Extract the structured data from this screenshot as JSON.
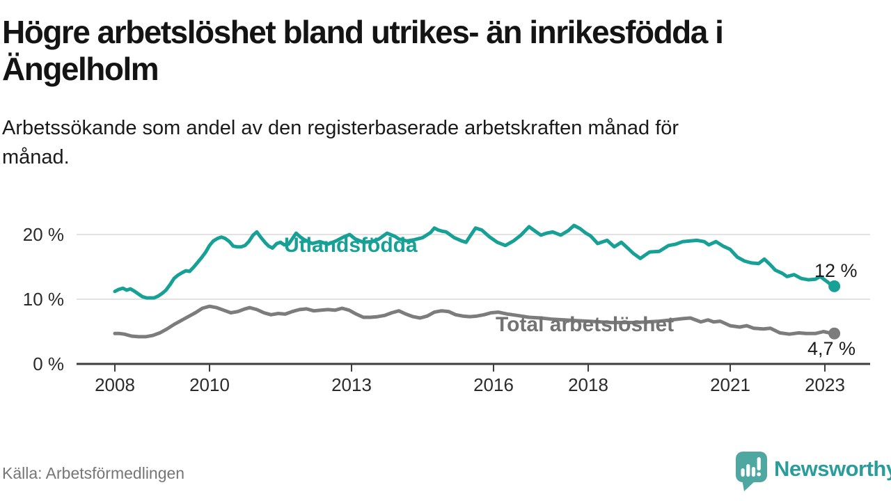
{
  "header": {
    "title": "Högre arbetslöshet bland utrikes- än inrikesfödda i Ängelholm",
    "subtitle": "Arbetssökande som andel av den registerbaserade arbetskraften månad för månad."
  },
  "chart_data": {
    "type": "line",
    "unit": "% av registerbaserad arbetskraft",
    "grid": "horizontal",
    "x_axis": {
      "range": [
        2007.9,
        2023.7
      ],
      "ticks": [
        {
          "value": 2008,
          "label": "2008"
        },
        {
          "value": 2010,
          "label": "2010"
        },
        {
          "value": 2013,
          "label": "2013"
        },
        {
          "value": 2016,
          "label": "2016"
        },
        {
          "value": 2018,
          "label": "2018"
        },
        {
          "value": 2021,
          "label": "2021"
        },
        {
          "value": 2023,
          "label": "2023"
        }
      ]
    },
    "y_axis": {
      "range": [
        0,
        24
      ],
      "ticks": [
        {
          "value": 0,
          "label": "0 %"
        },
        {
          "value": 10,
          "label": "10 %"
        },
        {
          "value": 20,
          "label": "20 %"
        }
      ]
    },
    "series": [
      {
        "name": "Utlandsfödda",
        "color": "#17a096",
        "label_color": "#17a096",
        "end_label": "12 %",
        "end_value": 12,
        "points": [
          [
            2008.0,
            11.2
          ],
          [
            2008.08,
            11.5
          ],
          [
            2008.17,
            11.7
          ],
          [
            2008.25,
            11.4
          ],
          [
            2008.33,
            11.6
          ],
          [
            2008.42,
            11.2
          ],
          [
            2008.5,
            10.8
          ],
          [
            2008.58,
            10.4
          ],
          [
            2008.67,
            10.2
          ],
          [
            2008.83,
            10.2
          ],
          [
            2008.92,
            10.5
          ],
          [
            2009.0,
            10.9
          ],
          [
            2009.08,
            11.4
          ],
          [
            2009.17,
            12.3
          ],
          [
            2009.25,
            13.2
          ],
          [
            2009.33,
            13.7
          ],
          [
            2009.42,
            14.1
          ],
          [
            2009.5,
            14.4
          ],
          [
            2009.58,
            14.3
          ],
          [
            2009.67,
            15.0
          ],
          [
            2009.75,
            15.7
          ],
          [
            2009.83,
            16.4
          ],
          [
            2009.92,
            17.3
          ],
          [
            2010.0,
            18.3
          ],
          [
            2010.08,
            19.0
          ],
          [
            2010.17,
            19.4
          ],
          [
            2010.25,
            19.6
          ],
          [
            2010.33,
            19.4
          ],
          [
            2010.42,
            18.9
          ],
          [
            2010.5,
            18.2
          ],
          [
            2010.58,
            18.1
          ],
          [
            2010.67,
            18.1
          ],
          [
            2010.75,
            18.3
          ],
          [
            2010.83,
            18.9
          ],
          [
            2010.92,
            19.9
          ],
          [
            2011.0,
            20.4
          ],
          [
            2011.08,
            19.6
          ],
          [
            2011.17,
            18.8
          ],
          [
            2011.25,
            18.2
          ],
          [
            2011.33,
            17.9
          ],
          [
            2011.42,
            18.6
          ],
          [
            2011.5,
            18.8
          ],
          [
            2011.58,
            18.4
          ],
          [
            2011.67,
            18.5
          ],
          [
            2011.83,
            20.2
          ],
          [
            2011.92,
            19.6
          ],
          [
            2012.0,
            19.2
          ],
          [
            2012.17,
            18.6
          ],
          [
            2012.33,
            18.9
          ],
          [
            2012.5,
            18.5
          ],
          [
            2012.67,
            19.0
          ],
          [
            2012.83,
            19.6
          ],
          [
            2012.96,
            20.0
          ],
          [
            2013.08,
            19.3
          ],
          [
            2013.25,
            18.8
          ],
          [
            2013.42,
            18.9
          ],
          [
            2013.58,
            19.3
          ],
          [
            2013.75,
            20.2
          ],
          [
            2013.92,
            19.7
          ],
          [
            2014.0,
            19.3
          ],
          [
            2014.17,
            19.0
          ],
          [
            2014.33,
            19.2
          ],
          [
            2014.5,
            19.5
          ],
          [
            2014.67,
            20.3
          ],
          [
            2014.75,
            21.0
          ],
          [
            2014.83,
            20.7
          ],
          [
            2014.92,
            20.5
          ],
          [
            2015.0,
            20.4
          ],
          [
            2015.17,
            19.5
          ],
          [
            2015.33,
            19.0
          ],
          [
            2015.42,
            18.8
          ],
          [
            2015.5,
            19.7
          ],
          [
            2015.62,
            21.0
          ],
          [
            2015.75,
            20.7
          ],
          [
            2015.92,
            19.6
          ],
          [
            2016.08,
            18.8
          ],
          [
            2016.25,
            18.3
          ],
          [
            2016.42,
            19.0
          ],
          [
            2016.58,
            19.9
          ],
          [
            2016.75,
            21.2
          ],
          [
            2016.92,
            20.3
          ],
          [
            2017.0,
            19.9
          ],
          [
            2017.12,
            20.2
          ],
          [
            2017.25,
            20.4
          ],
          [
            2017.42,
            19.9
          ],
          [
            2017.58,
            20.6
          ],
          [
            2017.7,
            21.4
          ],
          [
            2017.83,
            20.9
          ],
          [
            2017.95,
            20.2
          ],
          [
            2018.05,
            19.8
          ],
          [
            2018.2,
            18.6
          ],
          [
            2018.4,
            19.1
          ],
          [
            2018.55,
            18.1
          ],
          [
            2018.7,
            18.8
          ],
          [
            2018.85,
            17.8
          ],
          [
            2018.95,
            17.1
          ],
          [
            2019.1,
            16.3
          ],
          [
            2019.3,
            17.3
          ],
          [
            2019.5,
            17.4
          ],
          [
            2019.7,
            18.3
          ],
          [
            2019.85,
            18.5
          ],
          [
            2020.0,
            18.9
          ],
          [
            2020.15,
            19.0
          ],
          [
            2020.3,
            19.1
          ],
          [
            2020.45,
            18.9
          ],
          [
            2020.55,
            18.4
          ],
          [
            2020.7,
            18.9
          ],
          [
            2020.85,
            18.2
          ],
          [
            2021.0,
            17.7
          ],
          [
            2021.15,
            16.5
          ],
          [
            2021.3,
            15.9
          ],
          [
            2021.45,
            15.6
          ],
          [
            2021.6,
            15.5
          ],
          [
            2021.72,
            16.2
          ],
          [
            2021.85,
            15.3
          ],
          [
            2021.95,
            14.5
          ],
          [
            2022.1,
            14.0
          ],
          [
            2022.2,
            13.5
          ],
          [
            2022.35,
            13.8
          ],
          [
            2022.5,
            13.2
          ],
          [
            2022.65,
            13.0
          ],
          [
            2022.8,
            13.1
          ],
          [
            2022.9,
            13.5
          ],
          [
            2023.05,
            12.7
          ],
          [
            2023.12,
            12.3
          ],
          [
            2023.2,
            12.0
          ]
        ]
      },
      {
        "name": "Total arbetslöshet",
        "color": "#7c7c7c",
        "label_color": "#737373",
        "end_label": "4,7 %",
        "end_value": 4.7,
        "points": [
          [
            2008.0,
            4.7
          ],
          [
            2008.1,
            4.7
          ],
          [
            2008.2,
            4.6
          ],
          [
            2008.35,
            4.3
          ],
          [
            2008.5,
            4.2
          ],
          [
            2008.65,
            4.2
          ],
          [
            2008.8,
            4.4
          ],
          [
            2008.95,
            4.8
          ],
          [
            2009.1,
            5.4
          ],
          [
            2009.25,
            6.1
          ],
          [
            2009.4,
            6.7
          ],
          [
            2009.55,
            7.3
          ],
          [
            2009.7,
            7.9
          ],
          [
            2009.85,
            8.6
          ],
          [
            2010.0,
            8.9
          ],
          [
            2010.15,
            8.7
          ],
          [
            2010.3,
            8.3
          ],
          [
            2010.45,
            7.9
          ],
          [
            2010.6,
            8.1
          ],
          [
            2010.75,
            8.5
          ],
          [
            2010.85,
            8.7
          ],
          [
            2011.0,
            8.4
          ],
          [
            2011.15,
            7.9
          ],
          [
            2011.3,
            7.6
          ],
          [
            2011.45,
            7.8
          ],
          [
            2011.6,
            7.7
          ],
          [
            2011.75,
            8.1
          ],
          [
            2011.9,
            8.4
          ],
          [
            2012.05,
            8.5
          ],
          [
            2012.2,
            8.2
          ],
          [
            2012.35,
            8.3
          ],
          [
            2012.5,
            8.4
          ],
          [
            2012.65,
            8.3
          ],
          [
            2012.8,
            8.6
          ],
          [
            2012.95,
            8.3
          ],
          [
            2013.1,
            7.7
          ],
          [
            2013.25,
            7.2
          ],
          [
            2013.4,
            7.2
          ],
          [
            2013.55,
            7.3
          ],
          [
            2013.7,
            7.5
          ],
          [
            2013.85,
            7.9
          ],
          [
            2014.0,
            8.2
          ],
          [
            2014.15,
            7.7
          ],
          [
            2014.3,
            7.3
          ],
          [
            2014.45,
            7.1
          ],
          [
            2014.6,
            7.4
          ],
          [
            2014.75,
            8.0
          ],
          [
            2014.9,
            8.2
          ],
          [
            2015.05,
            8.1
          ],
          [
            2015.2,
            7.6
          ],
          [
            2015.35,
            7.4
          ],
          [
            2015.5,
            7.3
          ],
          [
            2015.65,
            7.4
          ],
          [
            2015.8,
            7.6
          ],
          [
            2015.95,
            7.9
          ],
          [
            2016.1,
            8.0
          ],
          [
            2016.3,
            7.7
          ],
          [
            2016.5,
            7.5
          ],
          [
            2016.75,
            7.2
          ],
          [
            2017.0,
            7.1
          ],
          [
            2017.25,
            6.9
          ],
          [
            2017.5,
            6.8
          ],
          [
            2017.75,
            6.7
          ],
          [
            2018.0,
            6.6
          ],
          [
            2018.25,
            6.5
          ],
          [
            2018.5,
            6.4
          ],
          [
            2018.75,
            6.4
          ],
          [
            2019.0,
            6.4
          ],
          [
            2019.25,
            6.5
          ],
          [
            2019.5,
            6.6
          ],
          [
            2019.75,
            6.8
          ],
          [
            2020.0,
            7.0
          ],
          [
            2020.16,
            7.1
          ],
          [
            2020.38,
            6.5
          ],
          [
            2020.53,
            6.8
          ],
          [
            2020.65,
            6.5
          ],
          [
            2020.79,
            6.6
          ],
          [
            2021.0,
            5.9
          ],
          [
            2021.2,
            5.7
          ],
          [
            2021.35,
            5.9
          ],
          [
            2021.5,
            5.5
          ],
          [
            2021.7,
            5.4
          ],
          [
            2021.85,
            5.5
          ],
          [
            2022.05,
            4.8
          ],
          [
            2022.25,
            4.6
          ],
          [
            2022.45,
            4.8
          ],
          [
            2022.6,
            4.7
          ],
          [
            2022.8,
            4.7
          ],
          [
            2022.97,
            5.0
          ],
          [
            2023.1,
            4.8
          ],
          [
            2023.2,
            4.7
          ]
        ]
      }
    ]
  },
  "footer": {
    "source": "Källa: Arbetsförmedlingen",
    "brand": "Newsworthy",
    "brand_color": "#2a9d9a",
    "brand_icon": "newsworthy-speech-bubble-chart-icon",
    "brand_icon_color": "#4ea7a0"
  }
}
